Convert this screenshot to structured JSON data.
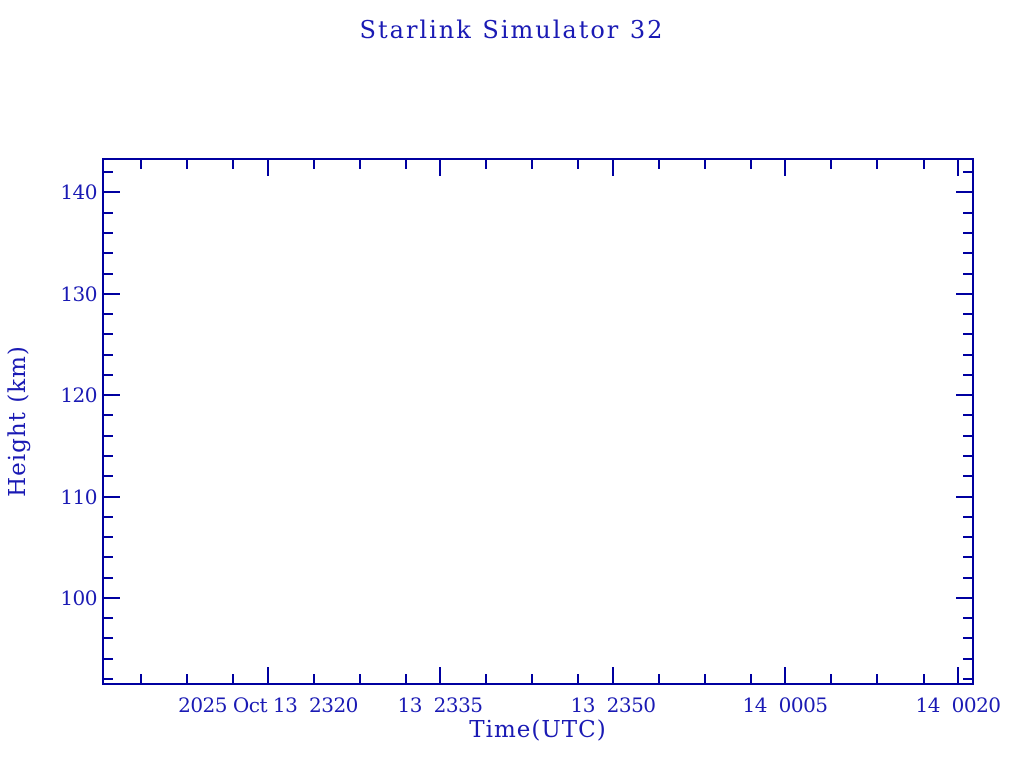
{
  "colors": {
    "line": "#0000a0",
    "text": "#1a1ab4",
    "background": "#ffffff"
  },
  "chart_data": {
    "type": "line",
    "title": "Starlink Simulator 32",
    "xlabel": "Time(UTC)",
    "ylabel": "Height (km)",
    "x_axis": {
      "unit": "minutes relative to 2025 Oct 13 23:20 UTC",
      "range": [
        -14.3,
        61.3
      ],
      "major_ticks": [
        {
          "t": 0,
          "label": "2025 Oct 13  2320"
        },
        {
          "t": 15,
          "label": "13  2335"
        },
        {
          "t": 30,
          "label": "13  2350"
        },
        {
          "t": 45,
          "label": "14  0005"
        },
        {
          "t": 60,
          "label": "14  0020"
        }
      ],
      "minor_ticks": [
        -11,
        -7,
        -3,
        4,
        8,
        12,
        19,
        23,
        27,
        34,
        38,
        42,
        49,
        53,
        57
      ],
      "grid": false
    },
    "y_axis": {
      "range": [
        91.5,
        143.3
      ],
      "major_ticks": [
        {
          "v": 100,
          "label": "100"
        },
        {
          "v": 110,
          "label": "110"
        },
        {
          "v": 120,
          "label": "120"
        },
        {
          "v": 130,
          "label": "130"
        },
        {
          "v": 140,
          "label": "140"
        }
      ],
      "minor_step": 2,
      "grid": false
    },
    "series": [],
    "data_points": [],
    "legend": null
  }
}
